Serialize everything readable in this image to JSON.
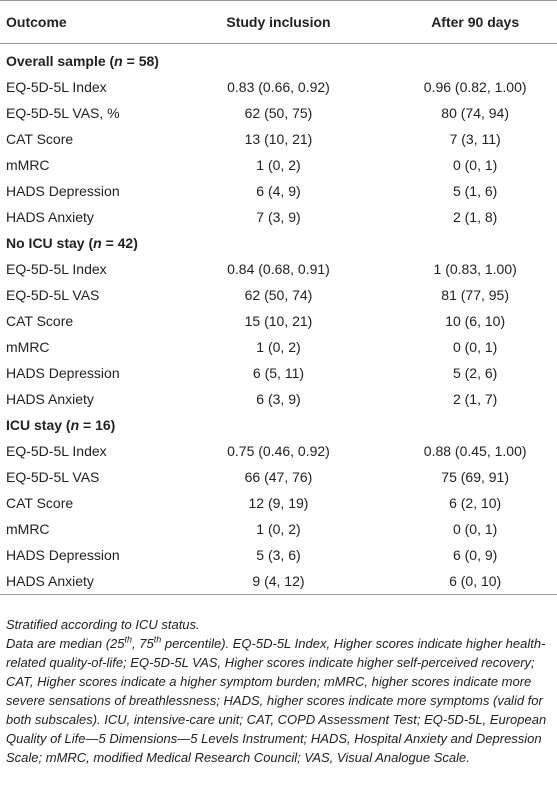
{
  "table": {
    "header": [
      "Outcome",
      "Study inclusion",
      "After 90 days"
    ],
    "sections": [
      {
        "label": [
          "Overall sample (",
          "n",
          " = 58)"
        ],
        "rows": [
          [
            "EQ-5D-5L Index",
            "0.83 (0.66, 0.92)",
            "0.96 (0.82, 1.00)"
          ],
          [
            "EQ-5D-5L VAS, %",
            "62 (50, 75)",
            "80 (74, 94)"
          ],
          [
            "CAT Score",
            "13 (10, 21)",
            "7 (3, 11)"
          ],
          [
            "mMRC",
            "1 (0, 2)",
            "0 (0, 1)"
          ],
          [
            "HADS Depression",
            "6 (4, 9)",
            "5 (1, 6)"
          ],
          [
            "HADS Anxiety",
            "7 (3, 9)",
            "2 (1, 8)"
          ]
        ]
      },
      {
        "label": [
          "No ICU stay (",
          "n",
          " = 42)"
        ],
        "rows": [
          [
            "EQ-5D-5L Index",
            "0.84 (0.68, 0.91)",
            "1 (0.83, 1.00)"
          ],
          [
            "EQ-5D-5L VAS",
            "62 (50, 74)",
            "81 (77, 95)"
          ],
          [
            "CAT Score",
            "15 (10, 21)",
            "10 (6, 10)"
          ],
          [
            "mMRC",
            "1 (0, 2)",
            "0 (0, 1)"
          ],
          [
            "HADS Depression",
            "6 (5, 11)",
            "5 (2, 6)"
          ],
          [
            "HADS Anxiety",
            "6 (3, 9)",
            "2 (1, 7)"
          ]
        ]
      },
      {
        "label": [
          "ICU stay (",
          "n",
          " = 16)"
        ],
        "rows": [
          [
            "EQ-5D-5L Index",
            "0.75 (0.46, 0.92)",
            "0.88 (0.45, 1.00)"
          ],
          [
            "EQ-5D-5L VAS",
            "66 (47, 76)",
            "75 (69, 91)"
          ],
          [
            "CAT Score",
            "12 (9, 19)",
            "6 (2, 10)"
          ],
          [
            "mMRC",
            "1 (0, 2)",
            "0 (0, 1)"
          ],
          [
            "HADS Depression",
            "5 (3, 6)",
            "6 (0, 9)"
          ],
          [
            "HADS Anxiety",
            "9 (4, 12)",
            "6 (0, 10)"
          ]
        ]
      }
    ]
  },
  "notes": {
    "stratified": "Stratified according to ICU status.",
    "definition": [
      "Data are median (25",
      "th",
      ", 75",
      "th",
      " percentile). EQ-5D-5L Index, Higher scores indicate higher health-related quality-of-life; EQ-5D-5L VAS, Higher scores indicate higher self-perceived recovery; CAT, Higher scores indicate a higher symptom burden; mMRC, higher scores indicate more severe sensations of breathlessness; HADS, higher scores indicate more symptoms (valid for both subscales). ICU, intensive-care unit; CAT, COPD Assessment Test; EQ-5D-5L, European Quality of Life—5 Dimensions—5 Levels Instrument; HADS, Hospital Anxiety and Depression Scale; mMRC, modified Medical Research Council; VAS, Visual Analogue Scale."
    ]
  }
}
